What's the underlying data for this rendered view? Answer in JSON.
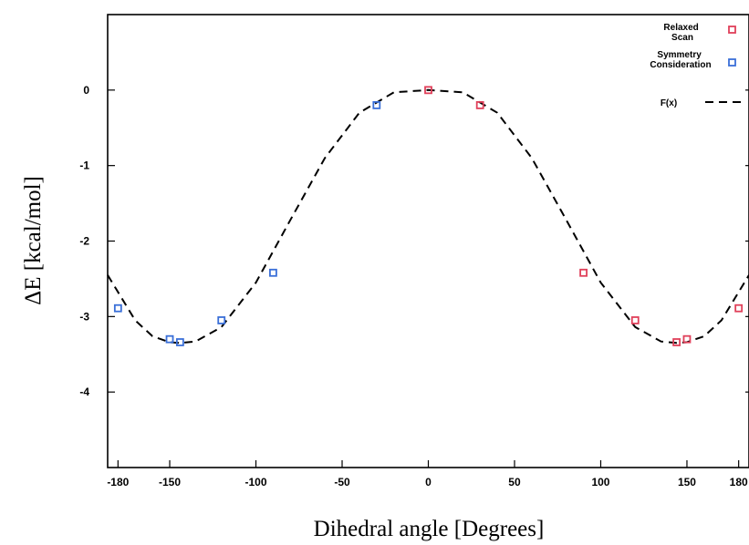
{
  "chart_data": {
    "type": "scatter",
    "title": "",
    "xlabel": "Dihedral angle [Degrees]",
    "ylabel": "ΔE [kcal/mol]",
    "xlim": [
      -186,
      186
    ],
    "ylim": [
      -5,
      1
    ],
    "x_ticks": [
      {
        "value": -180,
        "label": "-180"
      },
      {
        "value": -150,
        "label": "-150"
      },
      {
        "value": -100,
        "label": "-100"
      },
      {
        "value": -50,
        "label": "-50"
      },
      {
        "value": 0,
        "label": "0"
      },
      {
        "value": 50,
        "label": "50"
      },
      {
        "value": 100,
        "label": "100"
      },
      {
        "value": 150,
        "label": "150"
      },
      {
        "value": 180,
        "label": "180"
      }
    ],
    "y_ticks": [
      {
        "value": 0,
        "label": "0"
      },
      {
        "value": -1,
        "label": "-1"
      },
      {
        "value": -2,
        "label": "-2"
      },
      {
        "value": -3,
        "label": "-3"
      },
      {
        "value": -4,
        "label": "-4"
      }
    ],
    "grid": false,
    "legend_position": "top-right",
    "series": [
      {
        "name": "Relaxed\nScan",
        "kind": "points",
        "marker": "square",
        "color": "#e0405a",
        "x": [
          0,
          30,
          90,
          120,
          144,
          150,
          180
        ],
        "y": [
          0.0,
          -0.2,
          -2.42,
          -3.05,
          -3.34,
          -3.3,
          -2.89
        ]
      },
      {
        "name": "Symmetry\nConsideration",
        "kind": "points",
        "marker": "square",
        "color": "#3a6fd8",
        "x": [
          -180,
          -150,
          -144,
          -120,
          -90,
          -30
        ],
        "y": [
          -2.89,
          -3.3,
          -3.34,
          -3.05,
          -2.42,
          -0.2
        ]
      },
      {
        "name": "F(x)",
        "kind": "line",
        "style": "dashed",
        "color": "#000000",
        "x": [
          -186,
          -170,
          -160,
          -150,
          -144,
          -135,
          -120,
          -100,
          -80,
          -60,
          -40,
          -20,
          0,
          20,
          40,
          60,
          80,
          100,
          120,
          135,
          144,
          150,
          160,
          170,
          186
        ],
        "y": [
          -2.45,
          -3.05,
          -3.26,
          -3.34,
          -3.35,
          -3.33,
          -3.14,
          -2.55,
          -1.72,
          -0.9,
          -0.3,
          -0.03,
          0.0,
          -0.03,
          -0.3,
          -0.9,
          -1.72,
          -2.55,
          -3.14,
          -3.33,
          -3.35,
          -3.34,
          -3.26,
          -3.05,
          -2.45
        ]
      }
    ]
  }
}
